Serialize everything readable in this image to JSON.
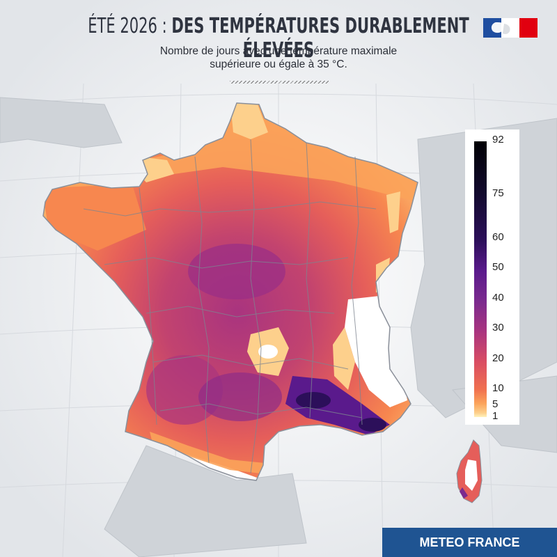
{
  "header": {
    "title_light": "ÉTÉ 2026 :",
    "title_bold": "DES TEMPÉRATURES DURABLEMENT ÉLEVÉES",
    "subtitle_line1": "Nombre de jours avec une température maximale",
    "subtitle_line2": "supérieure ou égale à 35 °C."
  },
  "legend": {
    "labels": [
      "92",
      "75",
      "60",
      "50",
      "40",
      "30",
      "20",
      "10",
      "5",
      "1"
    ],
    "colors": {
      "92": "#000004",
      "75": "#2c0f5a",
      "60": "#5a1a8c",
      "50": "#7b2a8e",
      "40": "#a9347f",
      "30": "#d94d63",
      "20": "#f0704f",
      "10": "#fba35a",
      "5": "#fdd08c",
      "1": "#fff3bd"
    }
  },
  "footer": {
    "brand": "METEO FRANCE"
  },
  "colors": {
    "brand_blue": "#1f5492",
    "flag_blue": "#1f4ea0",
    "flag_red": "#e1000f"
  }
}
